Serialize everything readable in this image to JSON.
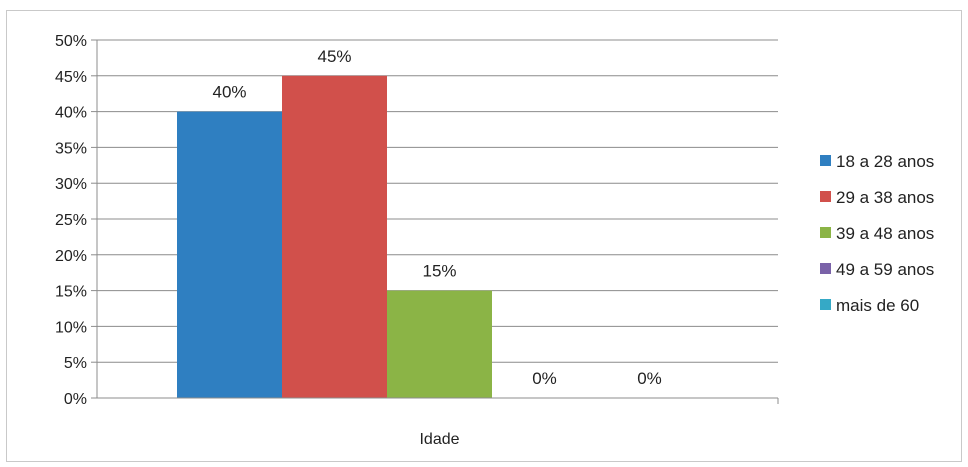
{
  "chart_data": {
    "type": "bar",
    "title": "",
    "xlabel": "Idade",
    "ylabel": "",
    "categories": [
      "Idade"
    ],
    "series": [
      {
        "name": "18 a 28 anos",
        "values": [
          40
        ],
        "label": "40%",
        "color": "#2f7fc1"
      },
      {
        "name": "29 a 38 anos",
        "values": [
          45
        ],
        "label": "45%",
        "color": "#d1504b"
      },
      {
        "name": "39 a 48 anos",
        "values": [
          15
        ],
        "label": "15%",
        "color": "#8bb446"
      },
      {
        "name": "49 a 59 anos",
        "values": [
          0
        ],
        "label": "0%",
        "color": "#7a62a8"
      },
      {
        "name": "mais de 60",
        "values": [
          0
        ],
        "label": "0%",
        "color": "#35a9c6"
      }
    ],
    "ylim": [
      0,
      50
    ],
    "yticks": [
      0,
      5,
      10,
      15,
      20,
      25,
      30,
      35,
      40,
      45,
      50
    ],
    "ytick_labels": [
      "0%",
      "5%",
      "10%",
      "15%",
      "20%",
      "25%",
      "30%",
      "35%",
      "40%",
      "45%",
      "50%"
    ],
    "grid": true,
    "legend_position": "right"
  }
}
